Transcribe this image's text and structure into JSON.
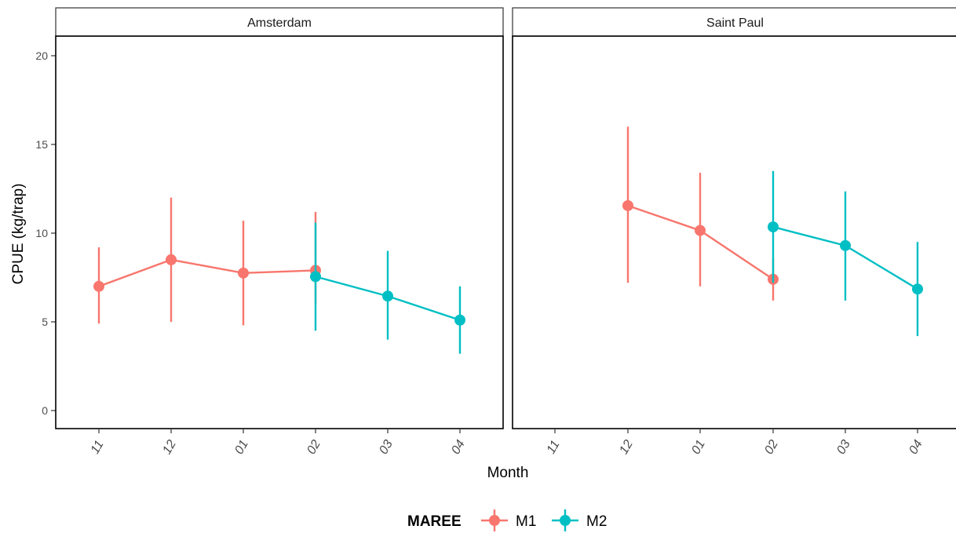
{
  "chart_data": {
    "type": "line",
    "xlabel": "Month",
    "ylabel": "CPUE (kg/trap)",
    "categories": [
      "11",
      "12",
      "01",
      "02",
      "03",
      "04"
    ],
    "ylim": [
      -0.5,
      21
    ],
    "yticks": [
      0,
      5,
      10,
      15,
      20
    ],
    "grid": false,
    "legend": {
      "title": "MAREE",
      "position": "bottom",
      "entries": [
        {
          "name": "M1",
          "color": "#F8766D"
        },
        {
          "name": "M2",
          "color": "#00BFC4"
        }
      ]
    },
    "panels": [
      {
        "title": "Amsterdam",
        "series": [
          {
            "name": "M1",
            "color": "#F8766D",
            "points": [
              {
                "x": "11",
                "y": 7.0,
                "lo": 4.9,
                "hi": 9.2
              },
              {
                "x": "12",
                "y": 8.5,
                "lo": 5.0,
                "hi": 12.0
              },
              {
                "x": "01",
                "y": 7.75,
                "lo": 4.8,
                "hi": 10.7
              },
              {
                "x": "02",
                "y": 7.9,
                "lo": 6.0,
                "hi": 11.2
              }
            ]
          },
          {
            "name": "M2",
            "color": "#00BFC4",
            "points": [
              {
                "x": "02",
                "y": 7.55,
                "lo": 4.5,
                "hi": 10.6
              },
              {
                "x": "03",
                "y": 6.45,
                "lo": 4.0,
                "hi": 9.0
              },
              {
                "x": "04",
                "y": 5.1,
                "lo": 3.2,
                "hi": 7.0
              }
            ]
          }
        ]
      },
      {
        "title": "Saint Paul",
        "series": [
          {
            "name": "M1",
            "color": "#F8766D",
            "points": [
              {
                "x": "12",
                "y": 11.55,
                "lo": 7.2,
                "hi": 16.0
              },
              {
                "x": "01",
                "y": 10.15,
                "lo": 7.0,
                "hi": 13.4
              },
              {
                "x": "02",
                "y": 7.4,
                "lo": 6.2,
                "hi": 8.6
              }
            ]
          },
          {
            "name": "M2",
            "color": "#00BFC4",
            "points": [
              {
                "x": "02",
                "y": 10.35,
                "lo": 7.2,
                "hi": 13.5
              },
              {
                "x": "03",
                "y": 9.3,
                "lo": 6.2,
                "hi": 12.35
              },
              {
                "x": "04",
                "y": 6.85,
                "lo": 4.2,
                "hi": 9.5
              }
            ]
          }
        ]
      }
    ]
  }
}
